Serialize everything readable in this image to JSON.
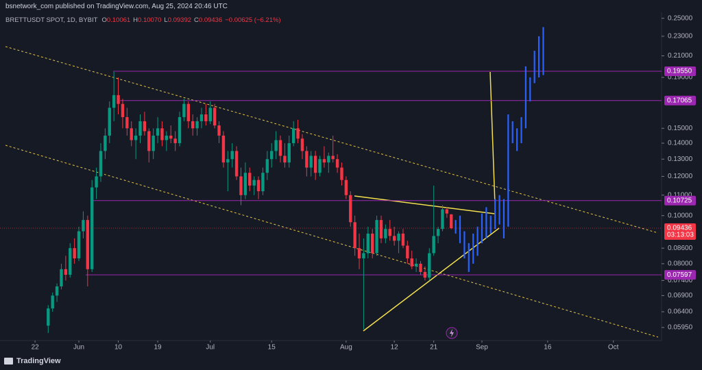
{
  "header": {
    "publisher": "bsnetwork_com published on TradingView.com, Aug 25, 2024 20:46 UTC"
  },
  "chart_data": {
    "type": "candlestick",
    "title": "BRETTUSDT SPOT, 1D, BYBIT",
    "ohlc_legend": [
      {
        "key": "O",
        "value": "0.10061"
      },
      {
        "key": "H",
        "value": "0.10070"
      },
      {
        "key": "L",
        "value": "0.09392"
      },
      {
        "key": "C",
        "value": "0.09436"
      }
    ],
    "change": "−0.00625 (−6.21%)",
    "log_scale": true,
    "grid": false,
    "xlim": [
      "May 14",
      "Oct 12"
    ],
    "ylim": [
      0.056,
      0.257
    ],
    "xticks": [
      {
        "value": "May 22",
        "label": "22"
      },
      {
        "value": "Jun 1",
        "label": "Jun"
      },
      {
        "value": "Jun 10",
        "label": "10"
      },
      {
        "value": "Jun 19",
        "label": "19"
      },
      {
        "value": "Jul 1",
        "label": "Jul"
      },
      {
        "value": "Jul 15",
        "label": "15"
      },
      {
        "value": "Aug 1",
        "label": "Aug"
      },
      {
        "value": "Aug 12",
        "label": "12"
      },
      {
        "value": "Aug 21",
        "label": "21"
      },
      {
        "value": "Sep 1",
        "label": "Sep"
      },
      {
        "value": "Sep 16",
        "label": "16"
      },
      {
        "value": "Oct 1",
        "label": "Oct"
      }
    ],
    "yticks": [
      {
        "value": 0.25,
        "label": "0.25000"
      },
      {
        "value": 0.23,
        "label": "0.23000"
      },
      {
        "value": 0.21,
        "label": "0.21000"
      },
      {
        "value": 0.19,
        "label": "0.19000"
      },
      {
        "value": 0.15,
        "label": "0.15000"
      },
      {
        "value": 0.14,
        "label": "0.14000"
      },
      {
        "value": 0.13,
        "label": "0.13000"
      },
      {
        "value": 0.12,
        "label": "0.12000"
      },
      {
        "value": 0.11,
        "label": "0.11000"
      },
      {
        "value": 0.1,
        "label": "0.10000"
      },
      {
        "value": 0.086,
        "label": "0.08600"
      },
      {
        "value": 0.08,
        "label": "0.08000"
      },
      {
        "value": 0.074,
        "label": "0.07400"
      },
      {
        "value": 0.069,
        "label": "0.06900"
      },
      {
        "value": 0.064,
        "label": "0.06400"
      },
      {
        "value": 0.0595,
        "label": "0.05950"
      }
    ],
    "up_color": "#089981",
    "down_color": "#f23645",
    "candles": {
      "x": [
        "May 25",
        "May 26",
        "May 27",
        "May 28",
        "May 29",
        "May 30",
        "May 31",
        "Jun 1",
        "Jun 2",
        "Jun 3",
        "Jun 4",
        "Jun 5",
        "Jun 6",
        "Jun 7",
        "Jun 8",
        "Jun 9",
        "Jun 10",
        "Jun 11",
        "Jun 12",
        "Jun 13",
        "Jun 14",
        "Jun 15",
        "Jun 16",
        "Jun 17",
        "Jun 18",
        "Jun 19",
        "Jun 20",
        "Jun 21",
        "Jun 22",
        "Jun 23",
        "Jun 24",
        "Jun 25",
        "Jun 26",
        "Jun 27",
        "Jun 28",
        "Jun 29",
        "Jun 30",
        "Jul 1",
        "Jul 2",
        "Jul 3",
        "Jul 4",
        "Jul 5",
        "Jul 6",
        "Jul 7",
        "Jul 8",
        "Jul 9",
        "Jul 10",
        "Jul 11",
        "Jul 12",
        "Jul 13",
        "Jul 14",
        "Jul 15",
        "Jul 16",
        "Jul 17",
        "Jul 18",
        "Jul 19",
        "Jul 20",
        "Jul 21",
        "Jul 22",
        "Jul 23",
        "Jul 24",
        "Jul 25",
        "Jul 26",
        "Jul 27",
        "Jul 28",
        "Jul 29",
        "Jul 30",
        "Jul 31",
        "Aug 1",
        "Aug 2",
        "Aug 3",
        "Aug 4",
        "Aug 5",
        "Aug 6",
        "Aug 7",
        "Aug 8",
        "Aug 9",
        "Aug 10",
        "Aug 11",
        "Aug 12",
        "Aug 13",
        "Aug 14",
        "Aug 15",
        "Aug 16",
        "Aug 17",
        "Aug 18",
        "Aug 19",
        "Aug 20",
        "Aug 21",
        "Aug 22",
        "Aug 23",
        "Aug 24",
        "Aug 25"
      ],
      "open": [
        0.06,
        0.065,
        0.069,
        0.072,
        0.078,
        0.076,
        0.086,
        0.082,
        0.093,
        0.098,
        0.078,
        0.114,
        0.12,
        0.135,
        0.145,
        0.165,
        0.175,
        0.168,
        0.158,
        0.15,
        0.142,
        0.145,
        0.155,
        0.148,
        0.135,
        0.145,
        0.15,
        0.142,
        0.145,
        0.143,
        0.14,
        0.158,
        0.168,
        0.155,
        0.15,
        0.155,
        0.16,
        0.155,
        0.165,
        0.152,
        0.145,
        0.128,
        0.13,
        0.135,
        0.12,
        0.11,
        0.122,
        0.115,
        0.118,
        0.112,
        0.122,
        0.13,
        0.135,
        0.142,
        0.132,
        0.128,
        0.14,
        0.15,
        0.143,
        0.135,
        0.125,
        0.132,
        0.122,
        0.13,
        0.128,
        0.132,
        0.13,
        0.125,
        0.118,
        0.11,
        0.097,
        0.086,
        0.082,
        0.084,
        0.092,
        0.084,
        0.098,
        0.09,
        0.094,
        0.091,
        0.089,
        0.092,
        0.087,
        0.082,
        0.079,
        0.08,
        0.077,
        0.075,
        0.084,
        0.091,
        0.094,
        0.103,
        0.10061
      ],
      "high": [
        0.066,
        0.07,
        0.073,
        0.08,
        0.083,
        0.088,
        0.09,
        0.095,
        0.102,
        0.1,
        0.118,
        0.125,
        0.14,
        0.15,
        0.17,
        0.195,
        0.19,
        0.172,
        0.165,
        0.155,
        0.15,
        0.16,
        0.162,
        0.15,
        0.15,
        0.158,
        0.155,
        0.148,
        0.152,
        0.148,
        0.162,
        0.172,
        0.17,
        0.16,
        0.158,
        0.165,
        0.168,
        0.17,
        0.168,
        0.155,
        0.148,
        0.135,
        0.14,
        0.138,
        0.125,
        0.128,
        0.125,
        0.12,
        0.12,
        0.125,
        0.135,
        0.14,
        0.148,
        0.145,
        0.14,
        0.145,
        0.155,
        0.156,
        0.146,
        0.138,
        0.135,
        0.135,
        0.132,
        0.138,
        0.134,
        0.145,
        0.133,
        0.128,
        0.12,
        0.112,
        0.1,
        0.092,
        0.09,
        0.095,
        0.094,
        0.1,
        0.1,
        0.096,
        0.098,
        0.095,
        0.093,
        0.094,
        0.089,
        0.085,
        0.082,
        0.081,
        0.079,
        0.086,
        0.115,
        0.095,
        0.105,
        0.104,
        0.1007
      ],
      "low": [
        0.058,
        0.064,
        0.067,
        0.071,
        0.074,
        0.075,
        0.08,
        0.081,
        0.09,
        0.072,
        0.077,
        0.108,
        0.117,
        0.13,
        0.14,
        0.155,
        0.16,
        0.15,
        0.145,
        0.138,
        0.13,
        0.14,
        0.145,
        0.128,
        0.13,
        0.14,
        0.138,
        0.135,
        0.14,
        0.135,
        0.138,
        0.155,
        0.15,
        0.145,
        0.145,
        0.15,
        0.152,
        0.153,
        0.15,
        0.14,
        0.125,
        0.112,
        0.125,
        0.118,
        0.105,
        0.108,
        0.112,
        0.11,
        0.108,
        0.11,
        0.118,
        0.125,
        0.13,
        0.128,
        0.125,
        0.125,
        0.138,
        0.14,
        0.13,
        0.12,
        0.12,
        0.118,
        0.12,
        0.125,
        0.122,
        0.128,
        0.122,
        0.115,
        0.108,
        0.095,
        0.083,
        0.078,
        0.059,
        0.082,
        0.082,
        0.083,
        0.088,
        0.088,
        0.089,
        0.087,
        0.084,
        0.086,
        0.08,
        0.078,
        0.077,
        0.076,
        0.074,
        0.074,
        0.083,
        0.088,
        0.093,
        0.099,
        0.09392
      ],
      "close": [
        0.065,
        0.069,
        0.072,
        0.078,
        0.076,
        0.086,
        0.082,
        0.093,
        0.098,
        0.078,
        0.114,
        0.12,
        0.135,
        0.145,
        0.165,
        0.175,
        0.168,
        0.158,
        0.15,
        0.142,
        0.145,
        0.155,
        0.148,
        0.135,
        0.145,
        0.15,
        0.142,
        0.145,
        0.143,
        0.14,
        0.158,
        0.168,
        0.155,
        0.15,
        0.155,
        0.16,
        0.155,
        0.165,
        0.152,
        0.145,
        0.128,
        0.13,
        0.135,
        0.12,
        0.11,
        0.122,
        0.115,
        0.118,
        0.112,
        0.122,
        0.13,
        0.135,
        0.142,
        0.132,
        0.128,
        0.14,
        0.15,
        0.143,
        0.135,
        0.125,
        0.132,
        0.122,
        0.13,
        0.128,
        0.132,
        0.13,
        0.125,
        0.118,
        0.11,
        0.097,
        0.086,
        0.082,
        0.084,
        0.092,
        0.084,
        0.098,
        0.09,
        0.094,
        0.091,
        0.089,
        0.092,
        0.087,
        0.082,
        0.079,
        0.08,
        0.077,
        0.075,
        0.084,
        0.091,
        0.094,
        0.103,
        0.101,
        0.09436
      ]
    },
    "projection": {
      "color": "#2962ff",
      "x": [
        "Aug 26",
        "Aug 27",
        "Aug 28",
        "Aug 29",
        "Aug 30",
        "Aug 31",
        "Sep 1",
        "Sep 2",
        "Sep 3",
        "Sep 4",
        "Sep 5",
        "Sep 6",
        "Sep 7",
        "Sep 8",
        "Sep 9",
        "Sep 10",
        "Sep 11",
        "Sep 12",
        "Sep 13",
        "Sep 14",
        "Sep 15"
      ],
      "high": [
        0.098,
        0.1,
        0.093,
        0.088,
        0.092,
        0.095,
        0.101,
        0.104,
        0.1,
        0.108,
        0.11,
        0.108,
        0.16,
        0.155,
        0.15,
        0.158,
        0.2,
        0.19,
        0.215,
        0.23,
        0.24
      ],
      "low": [
        0.092,
        0.088,
        0.082,
        0.077,
        0.08,
        0.083,
        0.088,
        0.09,
        0.092,
        0.094,
        0.096,
        0.09,
        0.095,
        0.14,
        0.135,
        0.14,
        0.15,
        0.17,
        0.185,
        0.19,
        0.192
      ]
    },
    "level_color": "#9c27b0",
    "levels": [
      {
        "value": 0.1955,
        "label": "0.19550"
      },
      {
        "value": 0.17065,
        "label": "0.17065"
      },
      {
        "value": 0.10725,
        "label": "0.10725"
      },
      {
        "value": 0.07597,
        "label": "0.07597"
      }
    ],
    "last_price": {
      "value": 0.09436,
      "label": "0.09436",
      "countdown": "03:13:03"
    }
  },
  "footer": {
    "brand": "TradingView"
  }
}
